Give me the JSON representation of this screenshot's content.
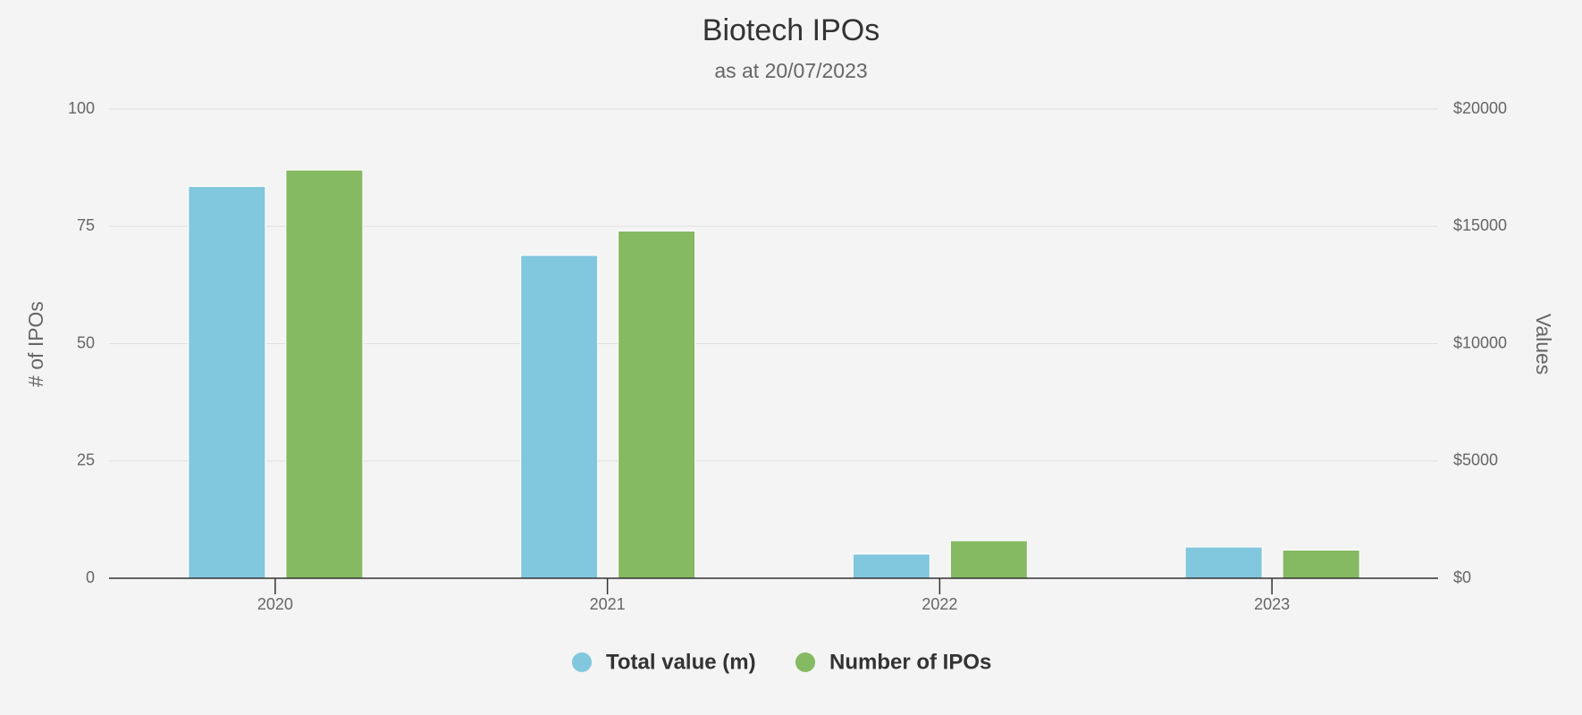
{
  "chart_data": {
    "type": "bar",
    "title": "Biotech IPOs",
    "subtitle": "as at 20/07/2023",
    "y_label": "# of IPOs",
    "y2_label": "Values",
    "categories": [
      "2020",
      "2021",
      "2022",
      "2023"
    ],
    "series": [
      {
        "name": "Total value (m)",
        "color": "#81c7dd",
        "axis": "y2",
        "values": [
          16700,
          13760,
          1030,
          1330
        ]
      },
      {
        "name": "Number of IPOs",
        "color": "#85b962",
        "values": [
          87,
          74,
          8,
          6
        ]
      }
    ],
    "ylim": [
      0,
      100
    ],
    "yticks": [
      0,
      25,
      50,
      75,
      100
    ],
    "y2lim": [
      0,
      20000
    ],
    "y2ticks": [
      {
        "value": 0,
        "label": "$0"
      },
      {
        "value": 5000,
        "label": "$5000"
      },
      {
        "value": 10000,
        "label": "$10000"
      },
      {
        "value": 15000,
        "label": "$15000"
      },
      {
        "value": 20000,
        "label": "$20000"
      }
    ],
    "grid": true,
    "legend": "bottom"
  }
}
